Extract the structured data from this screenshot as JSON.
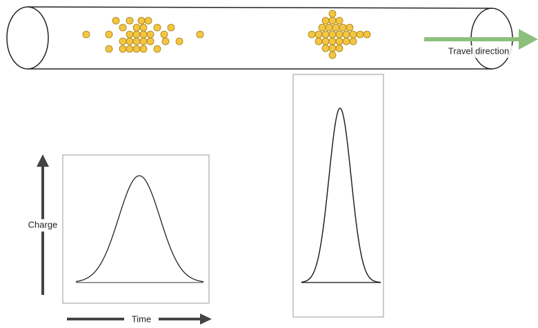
{
  "labels": {
    "travel_direction": "Travel direction",
    "y_axis": "Charge",
    "x_axis": "Time"
  }
}
